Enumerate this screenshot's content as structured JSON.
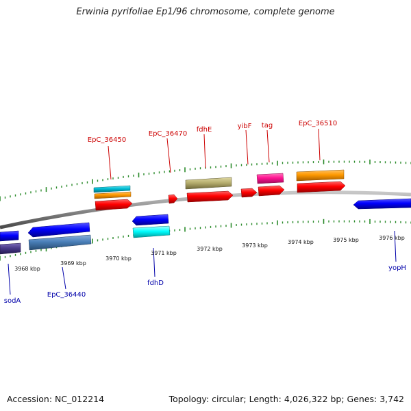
{
  "header": {
    "title": "Erwinia pyrifoliae Ep1/96 chromosome, complete genome"
  },
  "footer": {
    "accession": "Accession: NC_012214",
    "summary": "Topology: circular; Length: 4,026,322 bp; Genes: 3,742"
  },
  "colors": {
    "forward_label": "#cc0000",
    "reverse_label": "#0000aa",
    "tick": "#2a8a2a",
    "backbone": "#808080",
    "gene_red": "#ff0000",
    "gene_blue": "#0000ff",
    "gene_cyan": "#00ffff",
    "gene_teal": "#00bcd4",
    "gene_orange": "#ff9900",
    "gene_olive": "#b8b070",
    "gene_magenta": "#ff1493",
    "gene_steelblue": "#4a7fb8",
    "gene_indigo": "#4a3a8a"
  },
  "axis": {
    "tick_labels": [
      "3968 kbp",
      "3969 kbp",
      "3970 kbp",
      "3971 kbp",
      "3972 kbp",
      "3973 kbp",
      "3974 kbp",
      "3975 kbp",
      "3976 kbp"
    ]
  },
  "forward_genes": [
    {
      "label": "EpC_36450"
    },
    {
      "label": "EpC_36470"
    },
    {
      "label": "fdhE"
    },
    {
      "label": "yibF"
    },
    {
      "label": "tag"
    },
    {
      "label": "EpC_36510"
    }
  ],
  "reverse_genes": [
    {
      "label": "sodA"
    },
    {
      "label": "EpC_36440"
    },
    {
      "label": "fdhD"
    },
    {
      "label": "yopH"
    }
  ]
}
